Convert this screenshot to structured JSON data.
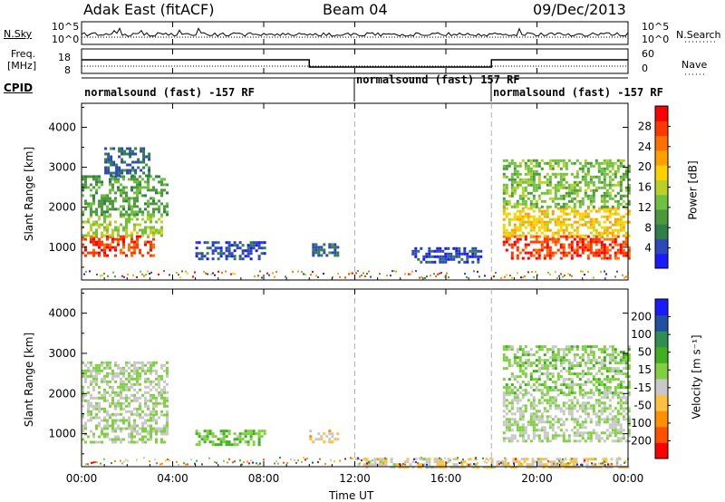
{
  "header": {
    "station": "Adak East (fitACF)",
    "beam": "Beam 04",
    "date": "09/Dec/2013"
  },
  "noise_panel": {
    "left_label": "N.Sky",
    "right_label": "N.Search",
    "left_ticks": [
      "10^5",
      "10^0"
    ],
    "right_ticks": [
      "10^5",
      "10^0"
    ]
  },
  "freq_panel": {
    "left_label_1": "Freq.",
    "left_label_2": "[MHz]",
    "left_ticks": [
      "18",
      "8"
    ],
    "right_label": "Nave",
    "right_ticks": [
      "60",
      "0"
    ]
  },
  "cpid_panel": {
    "label": "CPID",
    "segments": [
      {
        "start_hour": 0,
        "end_hour": 12,
        "text": "normalsound (fast) -157 RF"
      },
      {
        "start_hour": 12,
        "end_hour": 18,
        "text": "normalsound (fast) 157 RF"
      },
      {
        "start_hour": 18,
        "end_hour": 24,
        "text": "normalsound (fast) -157 RF"
      }
    ]
  },
  "x_axis": {
    "label": "Time UT",
    "ticks": [
      "00:00",
      "04:00",
      "08:00",
      "12:00",
      "16:00",
      "20:00",
      "00:00"
    ]
  },
  "power_colorbar": {
    "label": "Power [dB]",
    "ticks": [
      "28",
      "24",
      "20",
      "16",
      "12",
      "8",
      "4"
    ]
  },
  "velocity_colorbar": {
    "label": "Velocity [m s⁻¹]",
    "ticks": [
      "200",
      "100",
      "50",
      "15",
      "-15",
      "-50",
      "-100",
      "-200"
    ]
  },
  "colors": {
    "power_scale": [
      "#1a1aff",
      "#2d48b8",
      "#2f7f4a",
      "#4a9a3c",
      "#70c040",
      "#b8d028",
      "#ffd000",
      "#ffa000",
      "#ff7000",
      "#ff3800",
      "#ff0000"
    ],
    "velocity_scale": [
      "#ff0000",
      "#ff5000",
      "#ff9000",
      "#ffc040",
      "#c8c8c8",
      "#80d040",
      "#40b020",
      "#2f8f50",
      "#2050a0",
      "#1a1aff"
    ],
    "dashed_line": "#b0b0b0"
  },
  "chart_data": [
    {
      "type": "heatmap",
      "title": "Power",
      "xlabel": "Time UT",
      "ylabel": "Slant Range [km]",
      "x_range_hours": [
        0,
        24
      ],
      "y_range_km": [
        180,
        4600
      ],
      "y_ticks": [
        1000,
        2000,
        3000,
        4000
      ],
      "value_range": [
        0,
        30
      ],
      "value_label": "Power [dB]",
      "echo_regions": [
        {
          "t0": 0.0,
          "t1": 3.2,
          "r0": 800,
          "r1": 1300,
          "value": 26
        },
        {
          "t0": 0.0,
          "t1": 3.5,
          "r0": 1300,
          "r1": 1800,
          "value": 14
        },
        {
          "t0": 0.0,
          "t1": 3.8,
          "r0": 1800,
          "r1": 2800,
          "value": 10
        },
        {
          "t0": 1.0,
          "t1": 3.0,
          "r0": 2800,
          "r1": 3500,
          "value": 6
        },
        {
          "t0": 5.0,
          "t1": 8.0,
          "r0": 700,
          "r1": 1150,
          "value": 4
        },
        {
          "t0": 10.0,
          "t1": 11.3,
          "r0": 800,
          "r1": 1100,
          "value": 6
        },
        {
          "t0": 14.5,
          "t1": 17.5,
          "r0": 600,
          "r1": 1000,
          "value": 4
        },
        {
          "t0": 18.5,
          "t1": 24.0,
          "r0": 700,
          "r1": 1300,
          "value": 26
        },
        {
          "t0": 18.5,
          "t1": 24.0,
          "r0": 1300,
          "r1": 2000,
          "value": 18
        },
        {
          "t0": 18.5,
          "t1": 24.0,
          "r0": 2000,
          "r1": 3200,
          "value": 12
        }
      ]
    },
    {
      "type": "heatmap",
      "title": "Velocity",
      "xlabel": "Time UT",
      "ylabel": "Slant Range [km]",
      "x_range_hours": [
        0,
        24
      ],
      "y_range_km": [
        180,
        4600
      ],
      "y_ticks": [
        1000,
        2000,
        3000,
        4000
      ],
      "value_range": [
        -250,
        250
      ],
      "value_label": "Velocity [m s⁻¹]",
      "echo_regions": [
        {
          "t0": 0.0,
          "t1": 3.8,
          "r0": 800,
          "r1": 1500,
          "value": 0
        },
        {
          "t0": 0.0,
          "t1": 3.8,
          "r0": 1500,
          "r1": 2800,
          "value": 0
        },
        {
          "t0": 5.0,
          "t1": 8.0,
          "r0": 700,
          "r1": 1100,
          "value": 40
        },
        {
          "t0": 10.0,
          "t1": 11.3,
          "r0": 800,
          "r1": 1100,
          "value": -60
        },
        {
          "t0": 12.0,
          "t1": 24.0,
          "r0": 180,
          "r1": 400,
          "value": -40
        },
        {
          "t0": 18.5,
          "t1": 24.0,
          "r0": 800,
          "r1": 2000,
          "value": 0
        },
        {
          "t0": 18.5,
          "t1": 24.0,
          "r0": 2000,
          "r1": 3200,
          "value": 20
        }
      ]
    }
  ]
}
